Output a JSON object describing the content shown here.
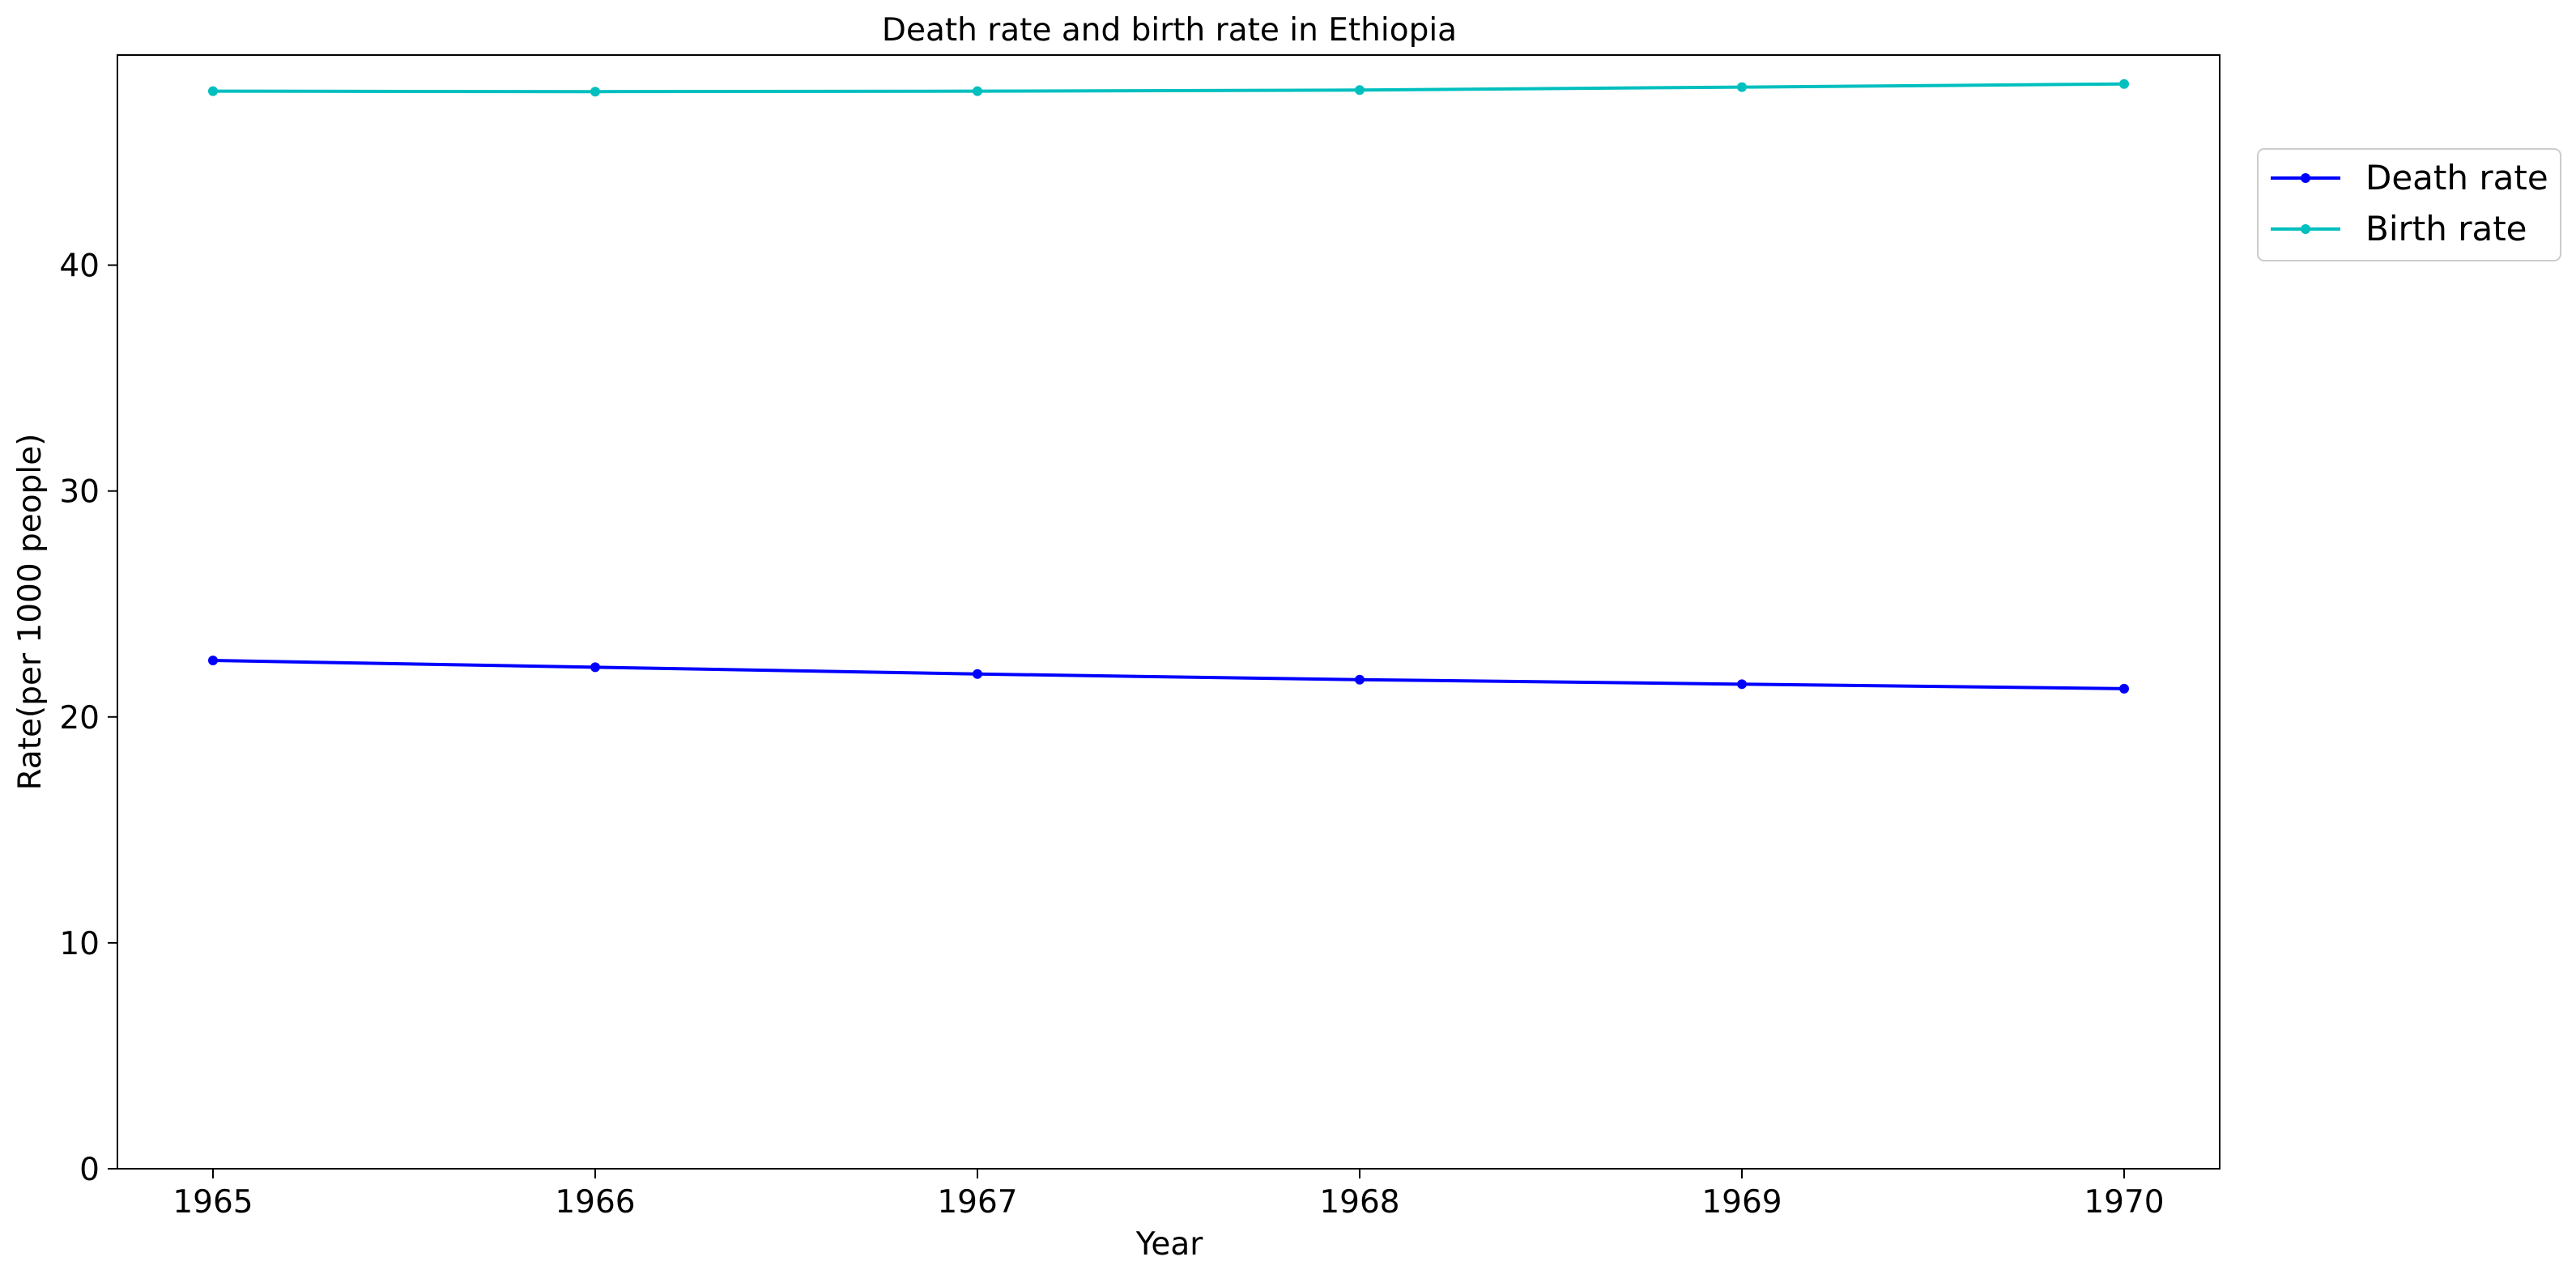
{
  "chart_data": {
    "type": "line",
    "title": "Death rate and birth rate in Ethiopia",
    "xlabel": "Year",
    "ylabel": "Rate(per 1000 people)",
    "x": [
      1965,
      1966,
      1967,
      1968,
      1969,
      1970
    ],
    "x_tick_labels": [
      "1965",
      "1966",
      "1967",
      "1968",
      "1969",
      "1970"
    ],
    "y_ticks": [
      0,
      10,
      20,
      30,
      40
    ],
    "y_tick_labels": [
      "0",
      "10",
      "20",
      "30",
      "40"
    ],
    "xlim": [
      1964.75,
      1970.25
    ],
    "ylim": [
      0,
      49.3
    ],
    "grid": false,
    "legend_position": "outside-top-right",
    "series": [
      {
        "name": "Death rate",
        "color": "#0000ff",
        "marker": "dot",
        "values": [
          22.5,
          22.2,
          21.9,
          21.65,
          21.45,
          21.25
        ]
      },
      {
        "name": "Birth rate",
        "color": "#00bfbf",
        "marker": "dot",
        "values": [
          47.7,
          47.68,
          47.7,
          47.75,
          47.88,
          48.02
        ]
      }
    ]
  }
}
